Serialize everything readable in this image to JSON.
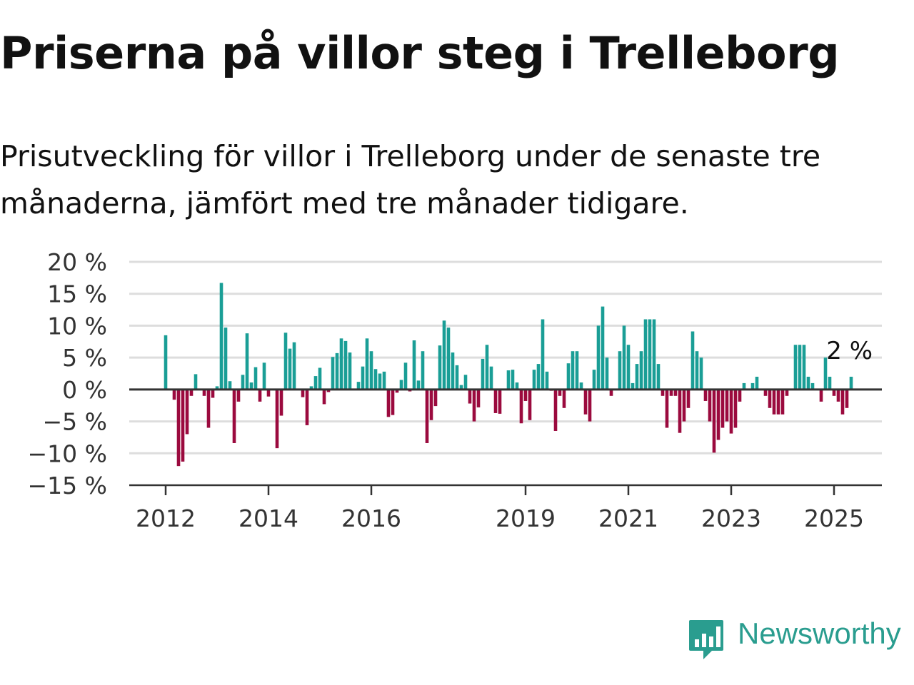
{
  "title": "Priserna på villor steg i Trelleborg",
  "subtitle": "Prisutveckling för villor i Trelleborg under de senaste tre månaderna, jämfört med tre månader tidigare.",
  "logo_text": "Newsworthy",
  "colors": {
    "positive": "#1a9e96",
    "negative": "#9b0a3e",
    "brand": "#2a9d8f"
  },
  "chart_data": {
    "type": "bar",
    "frequency": "monthly",
    "start": "2012-01",
    "x_ticks": [
      "2012",
      "2014",
      "2016",
      "2019",
      "2021",
      "2023",
      "2025"
    ],
    "y_ticks": [
      "20 %",
      "15 %",
      "10 %",
      "5 %",
      "0 %",
      "−5 %",
      "−10 %",
      "−15 %"
    ],
    "ylim": [
      -15,
      20
    ],
    "last_value_label": "2 %",
    "values": [
      8.5,
      0,
      -1.6,
      -12,
      -11.3,
      -7,
      -1,
      2.4,
      0,
      -1,
      -6,
      -1.3,
      0.5,
      16.7,
      9.7,
      1.3,
      -8.4,
      -1.9,
      2.3,
      8.8,
      1.1,
      3.5,
      -1.9,
      4.2,
      -1.1,
      0,
      -9.2,
      -4.1,
      8.9,
      6.4,
      7.4,
      0,
      -1.2,
      -5.6,
      0.5,
      2.1,
      3.4,
      -2.3,
      -0.4,
      5.1,
      5.7,
      8,
      7.6,
      5.8,
      0,
      1.2,
      3.6,
      8,
      6,
      3.2,
      2.5,
      2.8,
      -4.3,
      -4,
      -0.5,
      1.5,
      4.2,
      -0.3,
      7.7,
      1.4,
      6,
      -8.4,
      -4.8,
      -2.6,
      6.9,
      10.8,
      9.7,
      5.8,
      3.8,
      0.7,
      2.3,
      -2.2,
      -5,
      -2.8,
      4.8,
      7,
      3.6,
      -3.7,
      -3.8,
      0,
      3,
      3.1,
      1.1,
      -5.3,
      -1.8,
      -4.8,
      3.1,
      4,
      11,
      2.8,
      -0.2,
      -6.5,
      -1,
      -2.9,
      4.1,
      6,
      6,
      1.1,
      -3.9,
      -5,
      3.1,
      10,
      13,
      5,
      -1,
      0,
      6,
      10,
      7,
      1,
      4,
      6,
      11,
      11,
      11,
      4,
      -1,
      -6,
      -1,
      -1,
      -6.8,
      -5,
      -2.9,
      9.1,
      6,
      5,
      -1.8,
      -5,
      -9.9,
      -7.9,
      -6,
      -5,
      -6.9,
      -6,
      -1.9,
      1,
      0,
      1,
      2,
      0,
      -1,
      -2.9,
      -3.9,
      -3.9,
      -3.9,
      -1,
      0,
      7,
      7,
      7,
      2,
      1,
      0,
      -1.9,
      5,
      2,
      -1,
      -1.9,
      -3.9,
      -2.9,
      2
    ]
  }
}
